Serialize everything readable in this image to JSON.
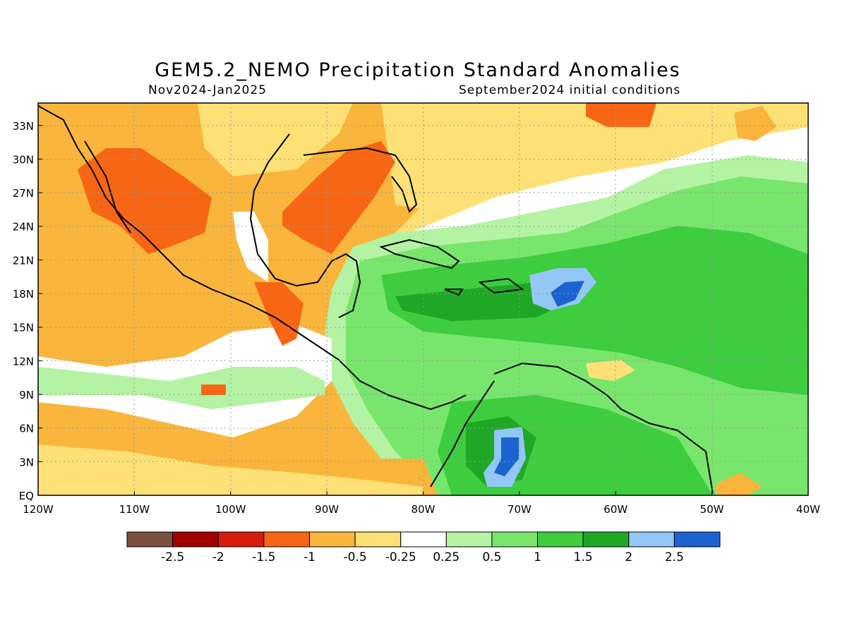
{
  "title": "GEM5.2_NEMO Precipitation Standard Anomalies",
  "period": "Nov2024-Jan2025",
  "init": "September2024 initial conditions",
  "chart_data": {
    "type": "heatmap",
    "lon_range": [
      -120,
      -40
    ],
    "lat_range": [
      0,
      35
    ],
    "lat_labels": [
      "33N",
      "30N",
      "27N",
      "24N",
      "21N",
      "18N",
      "15N",
      "12N",
      "9N",
      "6N",
      "3N",
      "EQ"
    ],
    "lat_values": [
      33,
      30,
      27,
      24,
      21,
      18,
      15,
      12,
      9,
      6,
      3,
      0
    ],
    "lon_labels": [
      "120W",
      "110W",
      "100W",
      "90W",
      "80W",
      "70W",
      "60W",
      "50W",
      "40W"
    ],
    "lon_values": [
      -120,
      -110,
      -100,
      -90,
      -80,
      -70,
      -60,
      -50,
      -40
    ],
    "grid": true,
    "legend": {
      "placement": "bottom",
      "colors": [
        "#7a5040",
        "#a00000",
        "#d81c0c",
        "#f76614",
        "#f9b53c",
        "#fde176",
        "#ffffff",
        "#b4f3a3",
        "#78e66c",
        "#3ecd3e",
        "#1fa825",
        "#93c7f5",
        "#1b64cf"
      ],
      "labels": [
        "-2.5",
        "-2",
        "-1.5",
        "-1",
        "-0.5",
        "-0.25",
        "0.25",
        "0.5",
        "1",
        "1.5",
        "2",
        "2.5"
      ]
    },
    "regions": [
      {
        "name": "orange-north",
        "color": "#f9b53c"
      },
      {
        "name": "red-mexico-west",
        "color": "#f76614"
      },
      {
        "name": "red-gulf",
        "color": "#f76614"
      },
      {
        "name": "green-caribbean",
        "color": "#78e66c"
      },
      {
        "name": "blue-puerto-rico",
        "color": "#93c7f5"
      },
      {
        "name": "blue-colombia",
        "color": "#93c7f5"
      }
    ]
  }
}
